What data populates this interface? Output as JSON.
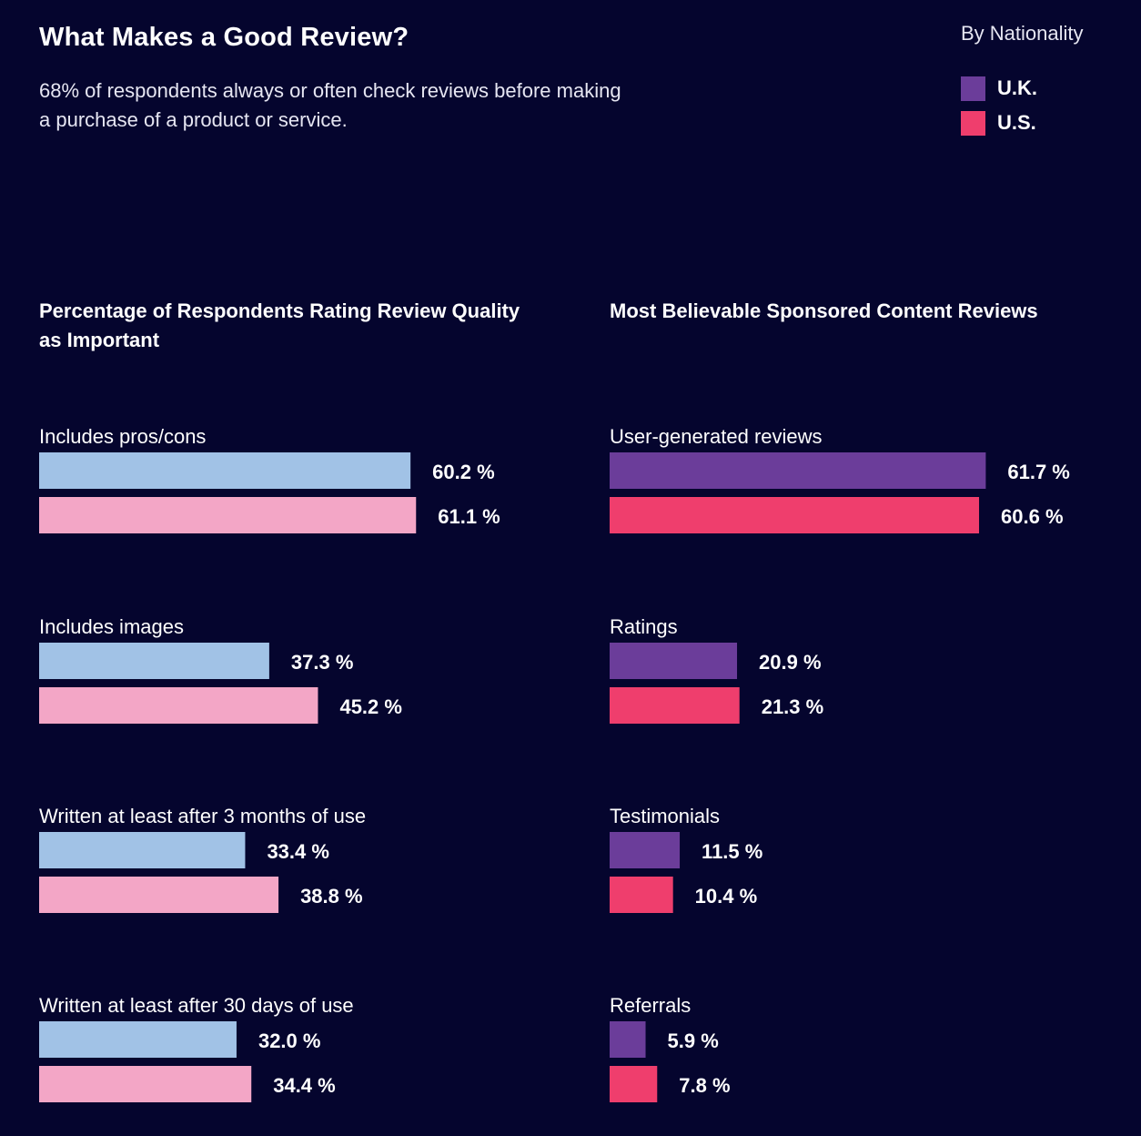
{
  "header": {
    "title": "What Makes a Good Review?",
    "subtitle": "68% of respondents always or often check reviews before making a purchase of a product or service."
  },
  "legend": {
    "heading": "By Nationality",
    "items": [
      {
        "label": "U.K.",
        "color": "#6b3d9a"
      },
      {
        "label": "U.S.",
        "color": "#ef3e6d"
      }
    ]
  },
  "chart_data": [
    {
      "type": "bar",
      "orientation": "horizontal",
      "title": "Percentage of Respondents Rating Review Quality as Important",
      "categories": [
        "Includes pros/cons",
        "Includes images",
        "Written at least after 3 months of use",
        "Written at least after 30 days of use"
      ],
      "series": [
        {
          "name": "U.K.",
          "color": "#a1c2e6",
          "values": [
            60.2,
            37.3,
            33.4,
            32.0
          ],
          "labels": [
            "60.2 %",
            "37.3 %",
            "33.4 %",
            "32.0 %"
          ]
        },
        {
          "name": "U.S.",
          "color": "#f3a6c6",
          "values": [
            61.1,
            45.2,
            38.8,
            34.4
          ],
          "labels": [
            "61.1 %",
            "45.2 %",
            "38.8 %",
            "34.4 %"
          ]
        }
      ],
      "unit": "%",
      "xlim": [
        0,
        90
      ]
    },
    {
      "type": "bar",
      "orientation": "horizontal",
      "title": "Most Believable Sponsored Content Reviews",
      "categories": [
        "User-generated reviews",
        "Ratings",
        "Testimonials",
        "Referrals"
      ],
      "series": [
        {
          "name": "U.K.",
          "color": "#6b3d9a",
          "values": [
            61.7,
            20.9,
            11.5,
            5.9
          ],
          "labels": [
            "61.7 %",
            "20.9 %",
            "11.5 %",
            "5.9 %"
          ]
        },
        {
          "name": "U.S.",
          "color": "#ef3e6d",
          "values": [
            60.6,
            21.3,
            10.4,
            7.8
          ],
          "labels": [
            "60.6 %",
            "21.3 %",
            "10.4 %",
            "7.8 %"
          ]
        }
      ],
      "unit": "%",
      "xlim": [
        0,
        90
      ]
    }
  ]
}
